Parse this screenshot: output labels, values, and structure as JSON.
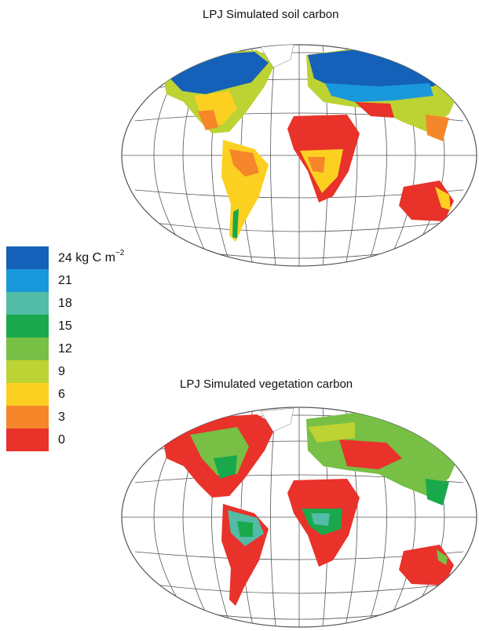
{
  "maps": {
    "top": {
      "title": "LPJ Simulated soil carbon"
    },
    "bottom": {
      "title": "LPJ Simulated vegetation carbon"
    }
  },
  "legend": {
    "unit_text": "kg C m",
    "unit_exponent": "−2",
    "items": [
      {
        "value": "24",
        "color": "#1560b8"
      },
      {
        "value": "21",
        "color": "#1a98dc"
      },
      {
        "value": "18",
        "color": "#52bca6"
      },
      {
        "value": "15",
        "color": "#1aa84c"
      },
      {
        "value": "12",
        "color": "#77bf45"
      },
      {
        "value": "9",
        "color": "#bdd233"
      },
      {
        "value": "6",
        "color": "#fcd020"
      },
      {
        "value": "3",
        "color": "#f5862a"
      },
      {
        "value": "0",
        "color": "#e8322a"
      }
    ]
  }
}
